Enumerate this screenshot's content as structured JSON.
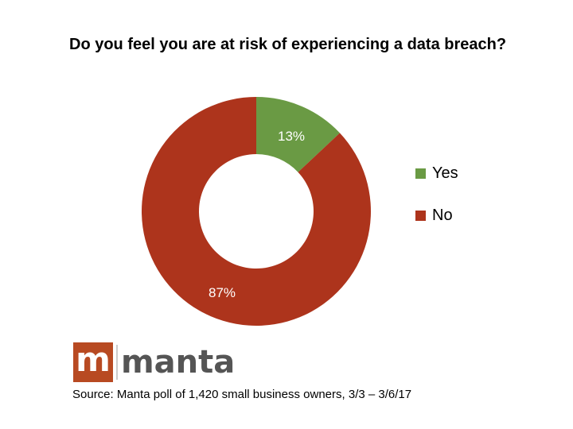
{
  "title": "Do you feel you are at risk of experiencing a data breach?",
  "chart_data": {
    "type": "pie",
    "subtype": "donut",
    "title": "Do you feel you are at risk of experiencing a data breach?",
    "categories": [
      "Yes",
      "No"
    ],
    "values": [
      13,
      87
    ],
    "labels": [
      "13%",
      "87%"
    ],
    "colors": [
      "#6a9a44",
      "#ad341c"
    ],
    "legend_position": "right"
  },
  "legend": {
    "items": [
      {
        "label": "Yes",
        "color": "#6a9a44"
      },
      {
        "label": "No",
        "color": "#ad341c"
      }
    ]
  },
  "logo": {
    "mark": "m",
    "text": "manta"
  },
  "source": "Source: Manta poll of 1,420 small business owners, 3/3 – 3/6/17"
}
